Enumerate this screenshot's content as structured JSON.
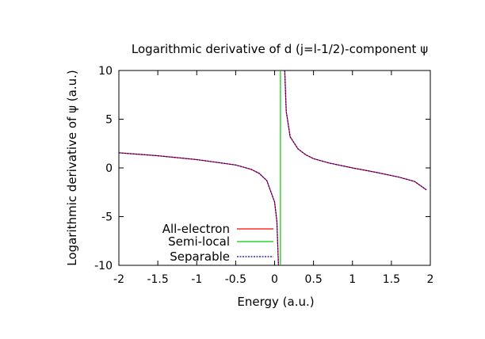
{
  "chart_data": {
    "type": "line",
    "title": "Logarithmic derivative of d (j=l-1/2)-component ψ",
    "xlabel": "Energy (a.u.)",
    "ylabel": "Logarithmic derivative of ψ (a.u.)",
    "xlim": [
      -2,
      2
    ],
    "ylim": [
      -10,
      10
    ],
    "xticks": [
      "-2",
      "-1.5",
      "-1",
      "-0.5",
      "0",
      "0.5",
      "1",
      "1.5",
      "2"
    ],
    "yticks": [
      "-10",
      "-5",
      "0",
      "5",
      "10"
    ],
    "grid": false,
    "legend_position": "bottom-left",
    "series": [
      {
        "name": "All-electron",
        "color": "#ff0000",
        "style": "solid",
        "segments": [
          {
            "x": [
              -2.0,
              -1.5,
              -1.0,
              -0.5,
              -0.3,
              -0.2,
              -0.1,
              0.0,
              0.03,
              0.05
            ],
            "y": [
              1.55,
              1.25,
              0.85,
              0.3,
              -0.15,
              -0.55,
              -1.3,
              -3.5,
              -5.5,
              -10.0
            ]
          },
          {
            "x": [
              0.13,
              0.15,
              0.2,
              0.3,
              0.4,
              0.5,
              0.7,
              1.0,
              1.3,
              1.6,
              1.8,
              1.95
            ],
            "y": [
              10.0,
              5.8,
              3.2,
              1.95,
              1.35,
              0.95,
              0.5,
              0.0,
              -0.45,
              -0.95,
              -1.4,
              -2.25
            ]
          }
        ]
      },
      {
        "name": "Semi-local",
        "color": "#00cc00",
        "style": "solid",
        "segments": [
          {
            "x": [
              0.075,
              0.075
            ],
            "y": [
              -10.0,
              10.0
            ]
          }
        ]
      },
      {
        "name": "Separable",
        "color": "#0000aa",
        "style": "dotted",
        "segments": [
          {
            "x": [
              -2.0,
              -1.5,
              -1.0,
              -0.5,
              -0.3,
              -0.2,
              -0.1,
              0.0,
              0.03,
              0.05
            ],
            "y": [
              1.55,
              1.25,
              0.85,
              0.3,
              -0.15,
              -0.55,
              -1.3,
              -3.5,
              -5.5,
              -10.0
            ]
          },
          {
            "x": [
              0.13,
              0.15,
              0.2,
              0.3,
              0.4,
              0.5,
              0.7,
              1.0,
              1.3,
              1.6,
              1.8,
              1.95
            ],
            "y": [
              10.0,
              5.8,
              3.2,
              1.95,
              1.35,
              0.95,
              0.5,
              0.0,
              -0.45,
              -0.95,
              -1.4,
              -2.25
            ]
          }
        ]
      }
    ]
  }
}
